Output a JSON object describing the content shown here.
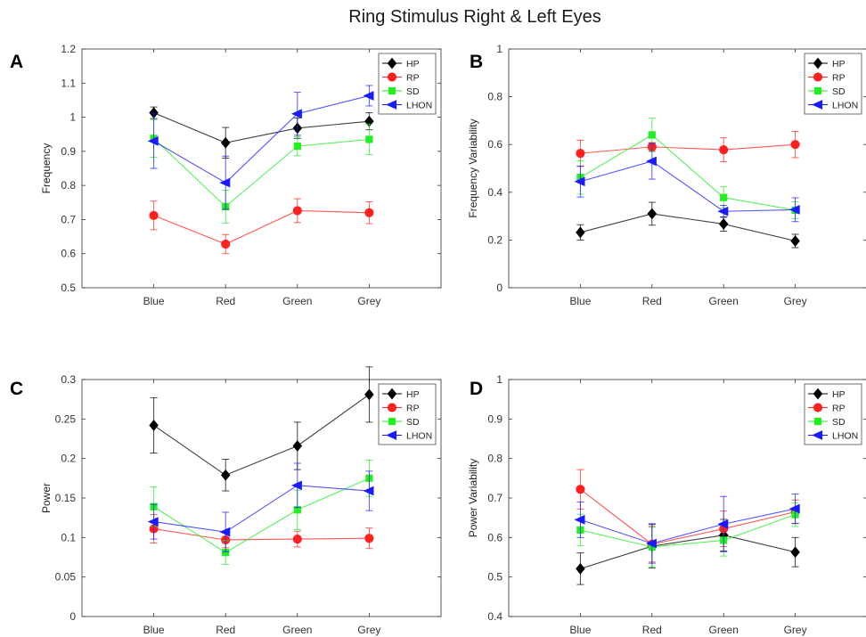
{
  "figure_title": "Ring Stimulus Right & Left Eyes",
  "chart_data": [
    {
      "panel": "A",
      "type": "line",
      "ylabel": "Frequency",
      "categories": [
        "Blue",
        "Red",
        "Green",
        "Grey"
      ],
      "ylim": [
        0.5,
        1.2
      ],
      "yticks": [
        "0.5",
        "0.6",
        "0.7",
        "0.8",
        "0.9",
        "1",
        "1.1",
        "1.2"
      ],
      "legend": "top-right",
      "series": [
        {
          "name": "HP",
          "color": "#000000",
          "marker": "diamond",
          "values": [
            1.013,
            0.925,
            0.968,
            0.988
          ],
          "errors": [
            0.017,
            0.045,
            0.03,
            0.025
          ]
        },
        {
          "name": "RP",
          "color": "#ff2020",
          "marker": "circle",
          "values": [
            0.712,
            0.628,
            0.726,
            0.72
          ],
          "errors": [
            0.042,
            0.028,
            0.035,
            0.032
          ]
        },
        {
          "name": "SD",
          "color": "#22ee22",
          "marker": "square",
          "values": [
            0.938,
            0.738,
            0.915,
            0.935
          ],
          "errors": [
            0.055,
            0.048,
            0.028,
            0.045
          ]
        },
        {
          "name": "LHON",
          "color": "#1a1aff",
          "marker": "triangle-left",
          "values": [
            0.93,
            0.808,
            1.01,
            1.063
          ],
          "errors": [
            0.08,
            0.078,
            0.063,
            0.03
          ]
        }
      ]
    },
    {
      "panel": "B",
      "type": "line",
      "ylabel": "Frequency Variability",
      "categories": [
        "Blue",
        "Red",
        "Green",
        "Grey"
      ],
      "ylim": [
        0,
        1
      ],
      "yticks": [
        "0",
        "0.2",
        "0.4",
        "0.6",
        "0.8",
        "1"
      ],
      "legend": "top-right",
      "series": [
        {
          "name": "HP",
          "color": "#000000",
          "marker": "diamond",
          "values": [
            0.232,
            0.31,
            0.267,
            0.196
          ],
          "errors": [
            0.032,
            0.048,
            0.03,
            0.028
          ]
        },
        {
          "name": "RP",
          "color": "#ff2020",
          "marker": "circle",
          "values": [
            0.563,
            0.59,
            0.578,
            0.6
          ],
          "errors": [
            0.055,
            0.018,
            0.05,
            0.055
          ]
        },
        {
          "name": "SD",
          "color": "#22ee22",
          "marker": "square",
          "values": [
            0.462,
            0.64,
            0.378,
            0.325
          ],
          "errors": [
            0.07,
            0.07,
            0.045,
            0.035
          ]
        },
        {
          "name": "LHON",
          "color": "#1a1aff",
          "marker": "triangle-left",
          "values": [
            0.445,
            0.53,
            0.32,
            0.327
          ],
          "errors": [
            0.065,
            0.075,
            0.025,
            0.05
          ]
        }
      ]
    },
    {
      "panel": "C",
      "type": "line",
      "ylabel": "Power",
      "categories": [
        "Blue",
        "Red",
        "Green",
        "Grey"
      ],
      "ylim": [
        0,
        0.3
      ],
      "yticks": [
        "0",
        "0.05",
        "0.1",
        "0.15",
        "0.2",
        "0.25",
        "0.3"
      ],
      "legend": "top-right",
      "series": [
        {
          "name": "HP",
          "color": "#000000",
          "marker": "diamond",
          "values": [
            0.242,
            0.179,
            0.216,
            0.281
          ],
          "errors": [
            0.035,
            0.02,
            0.03,
            0.035
          ]
        },
        {
          "name": "RP",
          "color": "#ff2020",
          "marker": "circle",
          "values": [
            0.111,
            0.097,
            0.098,
            0.099
          ],
          "errors": [
            0.018,
            0.01,
            0.01,
            0.013
          ]
        },
        {
          "name": "SD",
          "color": "#22ee22",
          "marker": "square",
          "values": [
            0.139,
            0.081,
            0.135,
            0.175
          ],
          "errors": [
            0.025,
            0.015,
            0.025,
            0.023
          ]
        },
        {
          "name": "LHON",
          "color": "#1a1aff",
          "marker": "triangle-left",
          "values": [
            0.12,
            0.107,
            0.166,
            0.159
          ],
          "errors": [
            0.022,
            0.025,
            0.028,
            0.025
          ]
        }
      ]
    },
    {
      "panel": "D",
      "type": "line",
      "ylabel": "Power Variability",
      "categories": [
        "Blue",
        "Red",
        "Green",
        "Grey"
      ],
      "ylim": [
        0.4,
        1
      ],
      "yticks": [
        "0.4",
        "0.5",
        "0.6",
        "0.7",
        "0.8",
        "0.9",
        "1"
      ],
      "legend": "top-right",
      "series": [
        {
          "name": "HP",
          "color": "#000000",
          "marker": "diamond",
          "values": [
            0.521,
            0.578,
            0.606,
            0.563
          ],
          "errors": [
            0.04,
            0.055,
            0.04,
            0.037
          ]
        },
        {
          "name": "RP",
          "color": "#ff2020",
          "marker": "circle",
          "values": [
            0.722,
            0.583,
            0.622,
            0.665
          ],
          "errors": [
            0.05,
            0.045,
            0.045,
            0.03
          ]
        },
        {
          "name": "SD",
          "color": "#22ee22",
          "marker": "square",
          "values": [
            0.619,
            0.576,
            0.593,
            0.658
          ],
          "errors": [
            0.04,
            0.05,
            0.04,
            0.03
          ]
        },
        {
          "name": "LHON",
          "color": "#1a1aff",
          "marker": "triangle-left",
          "values": [
            0.645,
            0.585,
            0.634,
            0.673
          ],
          "errors": [
            0.045,
            0.05,
            0.07,
            0.037
          ]
        }
      ]
    }
  ]
}
